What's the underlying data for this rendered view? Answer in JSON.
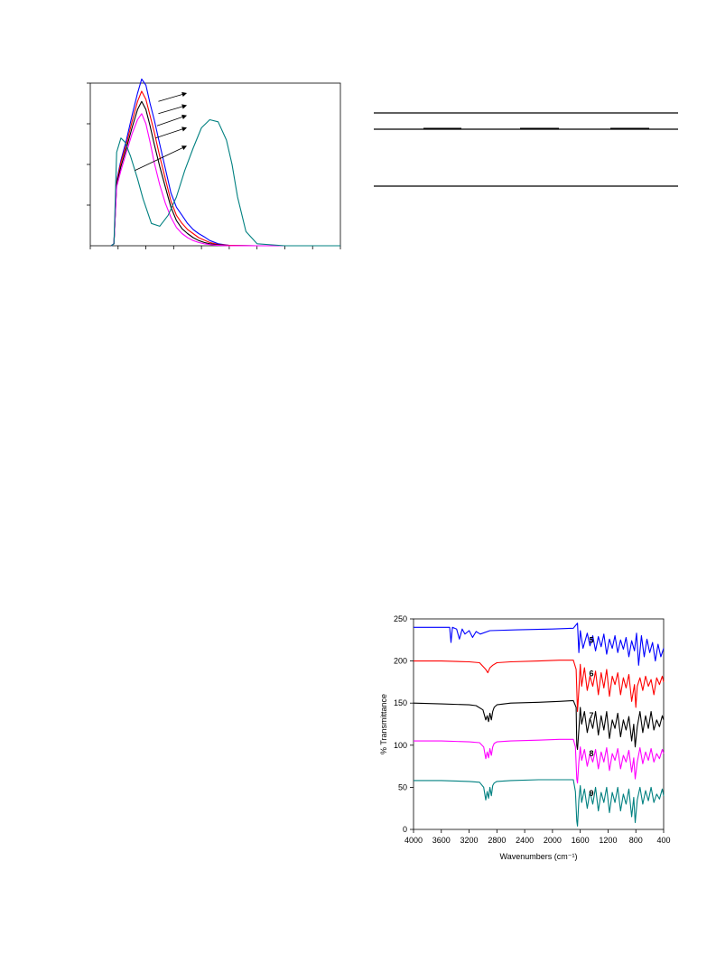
{
  "chart_data": [
    {
      "type": "line",
      "title": "",
      "xlabel": "",
      "ylabel": "",
      "xlim": [
        0,
        9
      ],
      "ylim": [
        0,
        4
      ],
      "x_ticks": [
        0,
        1,
        2,
        3,
        4,
        5,
        6,
        7,
        8,
        9
      ],
      "y_ticks": [
        1,
        2,
        3,
        4
      ],
      "tick_labels_visible": false,
      "grid": false,
      "series": [
        {
          "color": "#0000ff",
          "x": [
            0.75,
            0.85,
            0.95,
            1.1,
            1.3,
            1.5,
            1.7,
            1.85,
            2.0,
            2.15,
            2.3,
            2.5,
            2.7,
            2.9,
            3.1,
            3.3,
            3.5,
            3.7,
            3.9,
            4.1,
            4.3,
            4.6,
            5.0,
            6.0,
            7.0,
            8.0,
            9.0
          ],
          "values": [
            0.0,
            0.05,
            1.6,
            2.1,
            2.6,
            3.2,
            3.75,
            4.1,
            3.95,
            3.5,
            3.1,
            2.5,
            1.9,
            1.3,
            0.95,
            0.75,
            0.55,
            0.4,
            0.3,
            0.22,
            0.13,
            0.05,
            0.01,
            0.0,
            0.0,
            0.0,
            0.0
          ]
        },
        {
          "color": "#ff0000",
          "x": [
            0.75,
            0.85,
            0.95,
            1.1,
            1.3,
            1.5,
            1.7,
            1.85,
            2.0,
            2.15,
            2.3,
            2.5,
            2.7,
            2.9,
            3.1,
            3.3,
            3.5,
            3.7,
            3.9,
            4.1,
            4.3,
            4.6,
            5.0,
            6.0,
            7.0,
            8.0,
            9.0
          ],
          "values": [
            0.0,
            0.05,
            1.55,
            2.05,
            2.5,
            3.05,
            3.55,
            3.8,
            3.6,
            3.2,
            2.8,
            2.2,
            1.65,
            1.1,
            0.75,
            0.55,
            0.4,
            0.3,
            0.2,
            0.14,
            0.08,
            0.03,
            0.01,
            0.0,
            0.0,
            0.0,
            0.0
          ]
        },
        {
          "color": "#000000",
          "x": [
            0.75,
            0.85,
            0.95,
            1.1,
            1.3,
            1.5,
            1.7,
            1.85,
            2.0,
            2.15,
            2.3,
            2.5,
            2.7,
            2.9,
            3.1,
            3.3,
            3.5,
            3.7,
            3.9,
            4.1,
            4.3,
            4.6,
            5.0,
            6.0,
            7.0,
            8.0,
            9.0
          ],
          "values": [
            0.0,
            0.05,
            1.5,
            1.95,
            2.4,
            2.9,
            3.35,
            3.55,
            3.35,
            2.95,
            2.5,
            1.95,
            1.45,
            0.95,
            0.62,
            0.42,
            0.3,
            0.2,
            0.13,
            0.08,
            0.05,
            0.02,
            0.0,
            0.0,
            0.0,
            0.0,
            0.0
          ]
        },
        {
          "color": "#ff00ff",
          "x": [
            0.75,
            0.85,
            0.95,
            1.1,
            1.3,
            1.5,
            1.7,
            1.85,
            2.0,
            2.15,
            2.3,
            2.5,
            2.7,
            2.9,
            3.1,
            3.3,
            3.5,
            3.7,
            3.9,
            4.1,
            4.3,
            4.6,
            5.0,
            6.0,
            7.0,
            8.0,
            9.0
          ],
          "values": [
            0.0,
            0.05,
            1.45,
            1.85,
            2.3,
            2.75,
            3.1,
            3.25,
            3.0,
            2.55,
            2.05,
            1.5,
            1.05,
            0.7,
            0.45,
            0.3,
            0.2,
            0.13,
            0.08,
            0.05,
            0.03,
            0.01,
            0.0,
            0.0,
            0.0,
            0.0,
            0.0
          ]
        },
        {
          "color": "#008080",
          "x": [
            0.75,
            0.85,
            0.95,
            1.1,
            1.25,
            1.45,
            1.7,
            1.9,
            2.2,
            2.5,
            2.8,
            3.1,
            3.4,
            3.7,
            4.0,
            4.3,
            4.6,
            4.9,
            5.1,
            5.3,
            5.6,
            6.0,
            7.0,
            8.0,
            9.0
          ],
          "values": [
            0.0,
            0.05,
            2.3,
            2.65,
            2.55,
            2.2,
            1.65,
            1.15,
            0.55,
            0.48,
            0.75,
            1.2,
            1.85,
            2.4,
            2.9,
            3.1,
            3.05,
            2.6,
            2.0,
            1.2,
            0.35,
            0.05,
            0.0,
            0.0,
            0.0
          ]
        }
      ]
    },
    {
      "type": "line",
      "title": "",
      "xlabel": "Wavenumbers (cm⁻¹)",
      "ylabel": "% Transmittance",
      "xlim": [
        4000,
        400
      ],
      "ylim": [
        0,
        250
      ],
      "x_ticks": [
        "4000",
        "3600",
        "3200",
        "2800",
        "2400",
        "2000",
        "1600",
        "1200",
        "800",
        "400"
      ],
      "y_ticks": [
        "0",
        "50",
        "100",
        "150",
        "200",
        "250"
      ],
      "grid": false,
      "series": [
        {
          "name": "5",
          "color": "#0000ff",
          "baseline": 240,
          "label_x": 1440,
          "x": [
            4000,
            3480,
            3460,
            3440,
            3380,
            3340,
            3300,
            3260,
            3200,
            3150,
            3100,
            3040,
            2900,
            2500,
            2000,
            1700,
            1640,
            1620,
            1600,
            1560,
            1500,
            1460,
            1420,
            1380,
            1340,
            1300,
            1260,
            1220,
            1180,
            1140,
            1100,
            1060,
            1020,
            980,
            940,
            900,
            860,
            820,
            790,
            760,
            720,
            680,
            640,
            600,
            560,
            520,
            480,
            440,
            400
          ],
          "values": [
            240,
            240,
            222,
            240,
            238,
            226,
            238,
            232,
            236,
            228,
            235,
            232,
            236,
            237,
            238,
            239,
            245,
            210,
            236,
            215,
            233,
            218,
            230,
            212,
            229,
            217,
            232,
            208,
            226,
            215,
            230,
            210,
            225,
            214,
            228,
            205,
            224,
            212,
            233,
            195,
            230,
            205,
            226,
            210,
            222,
            200,
            220,
            205,
            215
          ]
        },
        {
          "name": "6",
          "color": "#ff0000",
          "baseline": 200,
          "label_x": 1440,
          "x": [
            4000,
            3600,
            3200,
            3050,
            2960,
            2930,
            2900,
            2860,
            2800,
            2600,
            2200,
            1900,
            1700,
            1660,
            1640,
            1620,
            1600,
            1580,
            1540,
            1500,
            1460,
            1420,
            1380,
            1340,
            1300,
            1260,
            1220,
            1180,
            1140,
            1100,
            1060,
            1020,
            980,
            940,
            900,
            860,
            820,
            800,
            780,
            740,
            700,
            660,
            620,
            580,
            540,
            500,
            460,
            420,
            400
          ],
          "values": [
            200,
            200,
            199,
            198,
            190,
            186,
            192,
            195,
            198,
            199,
            200,
            201,
            201,
            190,
            140,
            165,
            196,
            170,
            192,
            165,
            182,
            170,
            188,
            160,
            186,
            168,
            190,
            158,
            182,
            172,
            186,
            160,
            180,
            168,
            184,
            152,
            172,
            145,
            170,
            180,
            165,
            182,
            170,
            178,
            160,
            180,
            172,
            182,
            175
          ]
        },
        {
          "name": "7",
          "color": "#000000",
          "baseline": 150,
          "label_x": 1440,
          "x": [
            4000,
            3600,
            3200,
            3100,
            3000,
            2960,
            2940,
            2920,
            2900,
            2880,
            2860,
            2840,
            2800,
            2600,
            2200,
            1900,
            1700,
            1660,
            1650,
            1640,
            1620,
            1600,
            1580,
            1540,
            1500,
            1460,
            1420,
            1380,
            1340,
            1300,
            1260,
            1220,
            1180,
            1140,
            1100,
            1060,
            1020,
            980,
            940,
            900,
            860,
            830,
            810,
            780,
            740,
            700,
            660,
            620,
            580,
            540,
            500,
            460,
            420,
            400
          ],
          "values": [
            150,
            149,
            148,
            147,
            142,
            130,
            135,
            128,
            138,
            130,
            140,
            145,
            148,
            150,
            151,
            152,
            153,
            145,
            100,
            95,
            118,
            145,
            125,
            140,
            115,
            132,
            120,
            140,
            112,
            135,
            118,
            140,
            108,
            130,
            120,
            138,
            110,
            130,
            118,
            134,
            105,
            125,
            98,
            122,
            140,
            115,
            135,
            120,
            140,
            118,
            130,
            122,
            135,
            130
          ]
        },
        {
          "name": "8",
          "color": "#ff00ff",
          "baseline": 105,
          "label_x": 1440,
          "x": [
            4000,
            3600,
            3200,
            3050,
            2990,
            2960,
            2940,
            2920,
            2900,
            2880,
            2860,
            2840,
            2800,
            2600,
            2200,
            1900,
            1700,
            1670,
            1650,
            1640,
            1620,
            1600,
            1580,
            1540,
            1500,
            1460,
            1420,
            1380,
            1340,
            1300,
            1260,
            1220,
            1180,
            1140,
            1100,
            1060,
            1020,
            980,
            940,
            900,
            860,
            830,
            810,
            780,
            740,
            700,
            660,
            620,
            580,
            540,
            500,
            460,
            420,
            400
          ],
          "values": [
            105,
            105,
            104,
            103,
            98,
            84,
            92,
            85,
            96,
            88,
            98,
            102,
            104,
            105,
            106,
            107,
            107,
            98,
            60,
            55,
            80,
            98,
            82,
            95,
            75,
            90,
            80,
            95,
            72,
            92,
            80,
            97,
            70,
            90,
            82,
            96,
            72,
            88,
            80,
            94,
            68,
            85,
            60,
            80,
            97,
            78,
            92,
            82,
            96,
            80,
            90,
            84,
            95,
            90
          ]
        },
        {
          "name": "9",
          "color": "#008080",
          "baseline": 58,
          "label_x": 1440,
          "x": [
            4000,
            3600,
            3200,
            3050,
            2990,
            2960,
            2940,
            2920,
            2900,
            2880,
            2860,
            2840,
            2800,
            2600,
            2200,
            1900,
            1700,
            1670,
            1650,
            1640,
            1620,
            1600,
            1580,
            1540,
            1500,
            1460,
            1420,
            1380,
            1340,
            1300,
            1260,
            1220,
            1180,
            1140,
            1100,
            1060,
            1020,
            980,
            940,
            900,
            860,
            830,
            810,
            780,
            740,
            700,
            660,
            620,
            580,
            540,
            500,
            460,
            420,
            400
          ],
          "values": [
            58,
            58,
            57,
            56,
            50,
            35,
            45,
            37,
            50,
            40,
            52,
            55,
            57,
            58,
            59,
            59,
            59,
            45,
            10,
            4,
            35,
            52,
            32,
            48,
            25,
            45,
            30,
            50,
            22,
            44,
            32,
            50,
            20,
            44,
            32,
            50,
            22,
            42,
            30,
            48,
            15,
            38,
            8,
            35,
            50,
            30,
            46,
            34,
            50,
            32,
            42,
            36,
            48,
            40
          ]
        }
      ]
    }
  ],
  "ir": {
    "y_axis_title": "% Transmittance",
    "x_axis_title": "Wavenumbers (cm⁻¹)"
  }
}
